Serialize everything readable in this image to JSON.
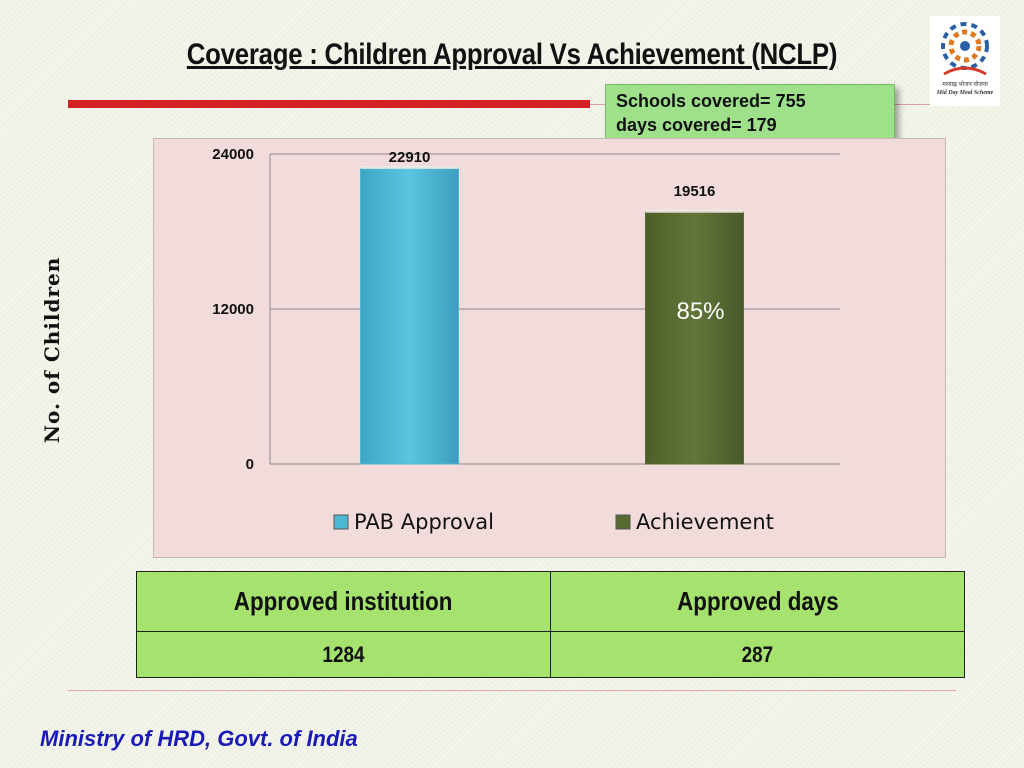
{
  "slide": {
    "title": "Coverage : Children Approval Vs Achievement (NCLP)",
    "footer": "Ministry of HRD, Govt. of India"
  },
  "logo": {
    "caption_1": "मध्याह्न भोजन योजना",
    "caption_2": "Mid Day Meal Scheme"
  },
  "callout": {
    "line1": "Schools covered= 755",
    "line2": "days covered= 179"
  },
  "colors": {
    "pab_approval": "#4db8d4",
    "achievement": "#576a2f",
    "chart_background": "#f2dcdb",
    "table_background": "#a6e26e",
    "title_rule": "#d42020",
    "footer_text": "#1a1ab8"
  },
  "chart_data": {
    "type": "bar",
    "categories": [
      "PAB Approval",
      "Achievement"
    ],
    "values": [
      22910,
      19516
    ],
    "data_labels": [
      "22910",
      "19516"
    ],
    "percentage_label": "85%",
    "ylabel": "No. of Children",
    "ylim": [
      0,
      24000
    ],
    "yticks": [
      "0",
      "12000",
      "24000"
    ],
    "ytick_values": [
      0,
      12000,
      24000
    ],
    "grid": true,
    "legend": [
      "PAB Approval",
      "Achievement"
    ],
    "legend_position": "bottom"
  },
  "table": {
    "headers": [
      "Approved institution",
      "Approved days"
    ],
    "row": [
      "1284",
      "287"
    ]
  }
}
